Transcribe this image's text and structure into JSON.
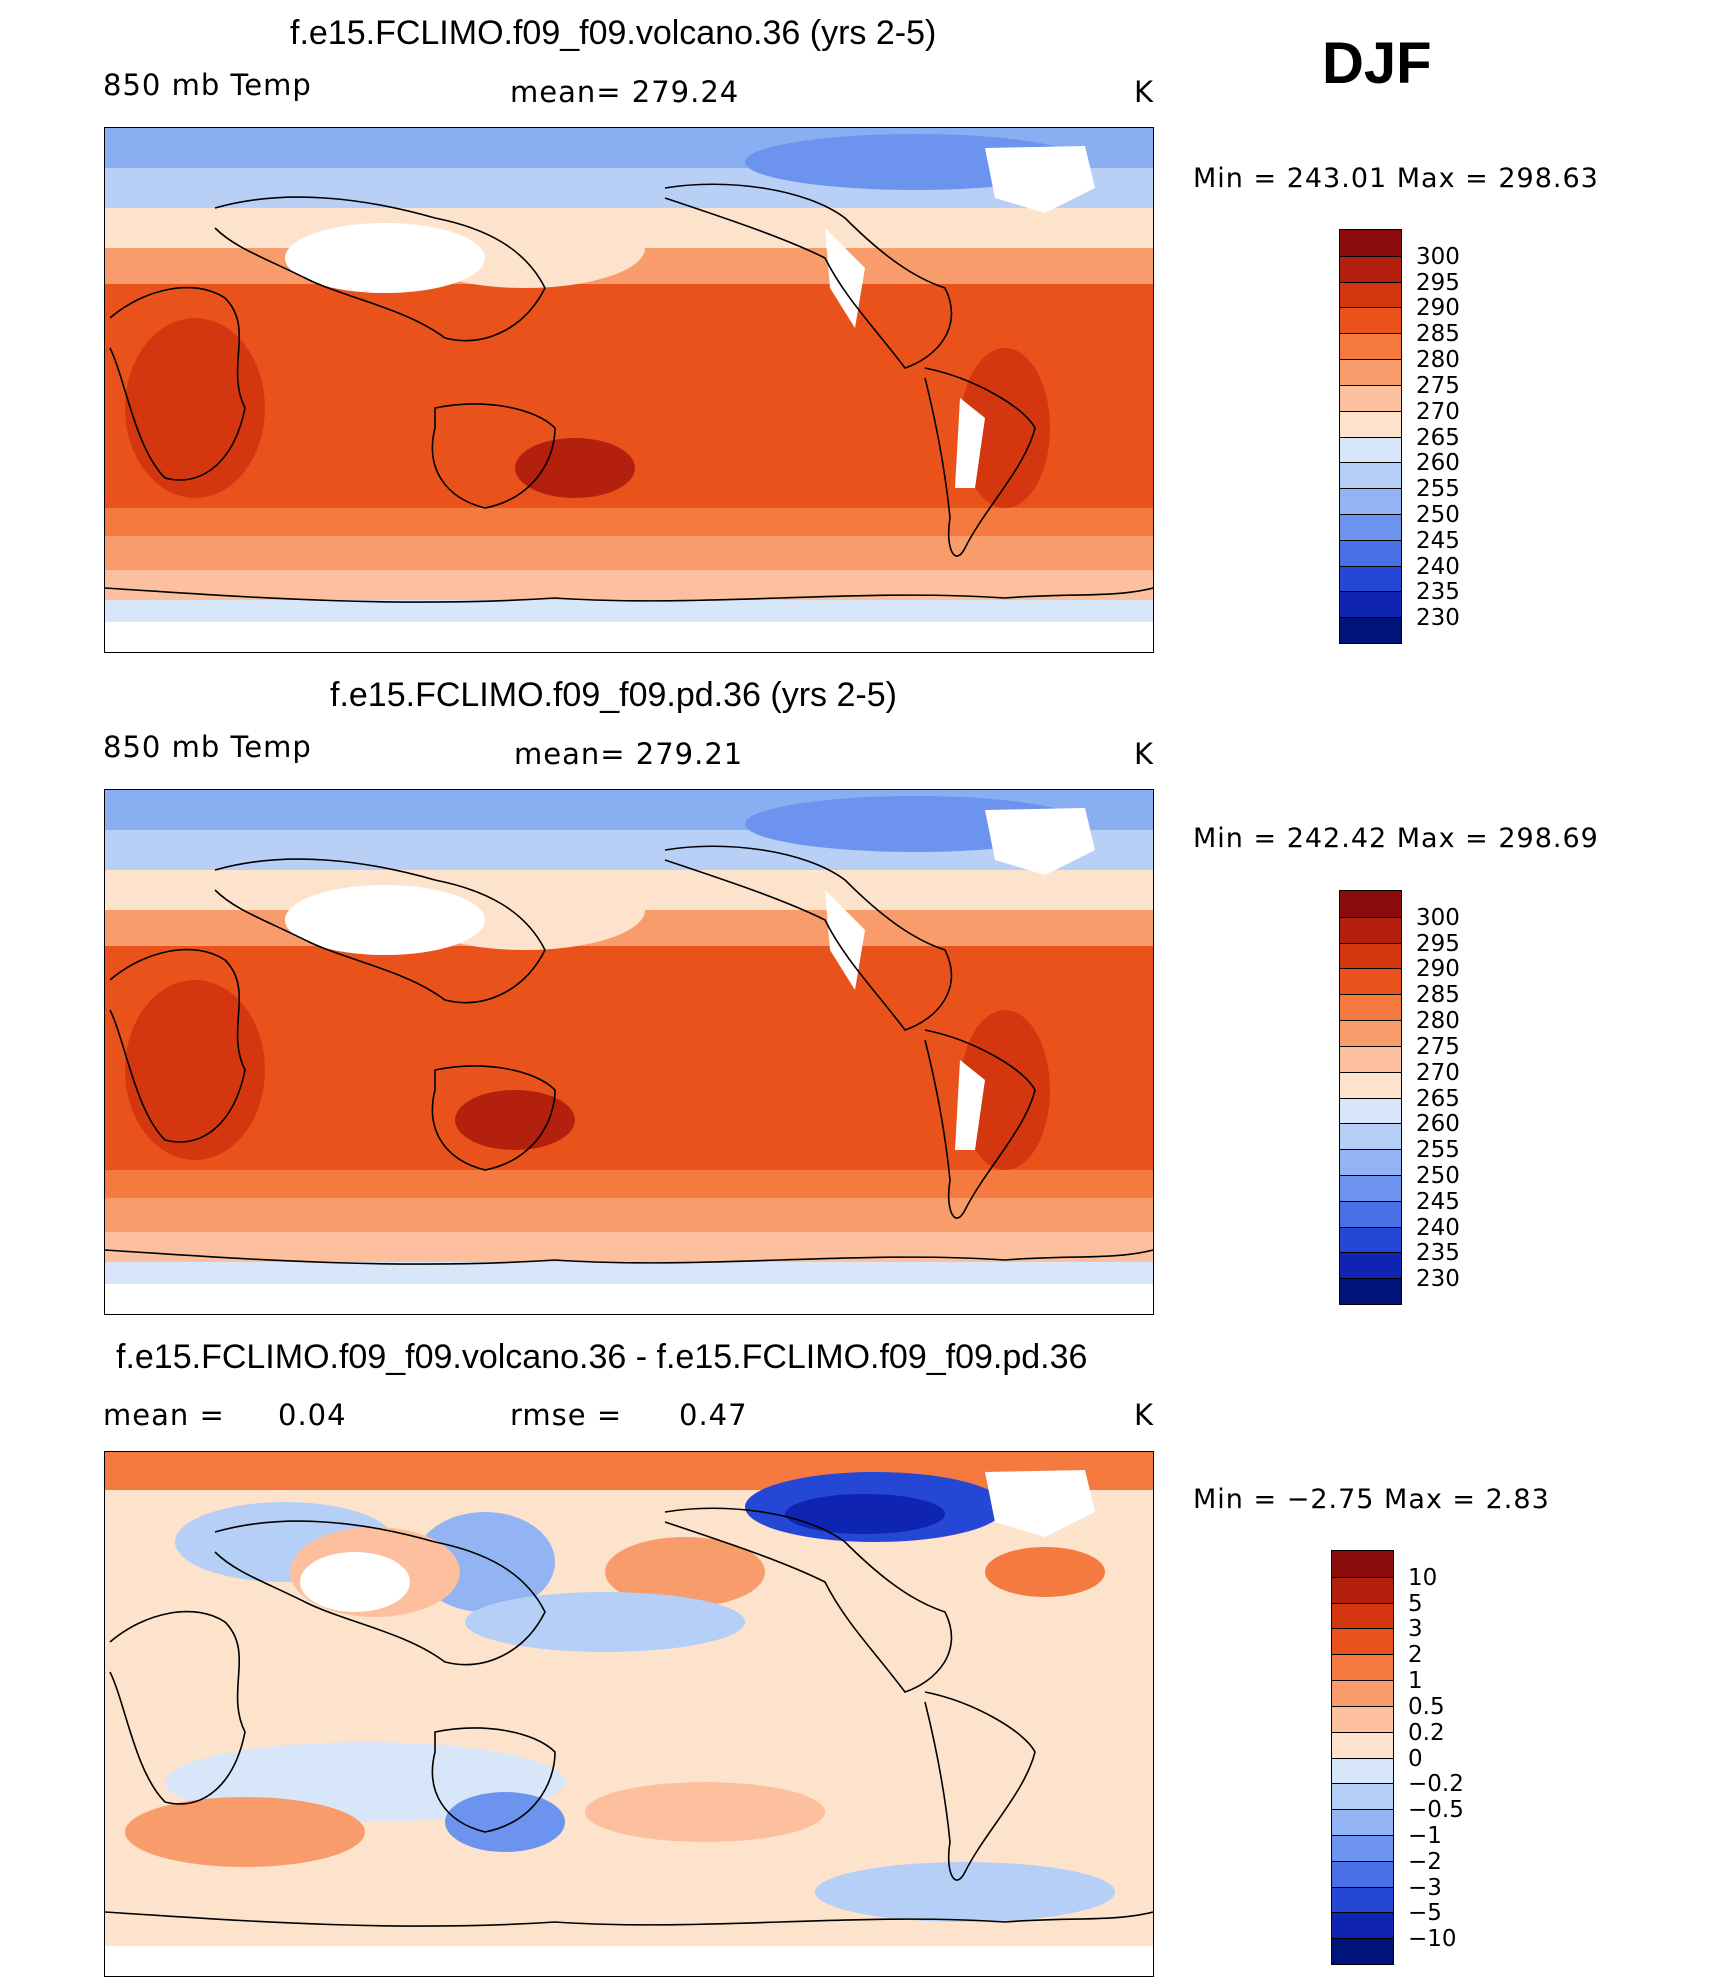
{
  "season": "DJF",
  "panels": [
    {
      "title": "f.e15.FCLIMO.f09_f09.volcano.36 (yrs 2-5)",
      "left_label": "850 mb Temp",
      "center_label": "mean= 279.24",
      "units": "K",
      "min_max": "Min = 243.01 Max = 298.63",
      "map_kind": "absolute"
    },
    {
      "title": "f.e15.FCLIMO.f09_f09.pd.36 (yrs 2-5)",
      "left_label": "850 mb Temp",
      "center_label": "mean= 279.21",
      "units": "K",
      "min_max": "Min = 242.42 Max = 298.69",
      "map_kind": "absolute"
    },
    {
      "title": "f.e15.FCLIMO.f09_f09.volcano.36 - f.e15.FCLIMO.f09_f09.pd.36",
      "left_label": "mean =",
      "left_value": "0.04",
      "center_label": "rmse =",
      "center_value": "0.47",
      "units": "K",
      "min_max": "Min = −2.75 Max = 2.83",
      "map_kind": "difference"
    }
  ],
  "colorbars": {
    "absolute": {
      "labels": [
        "300",
        "295",
        "290",
        "285",
        "280",
        "275",
        "270",
        "265",
        "260",
        "255",
        "250",
        "245",
        "240",
        "235",
        "230"
      ],
      "colors": [
        "#8b0b0b",
        "#b3200e",
        "#d4370f",
        "#e9521a",
        "#f47a3f",
        "#f89c6c",
        "#fcc09e",
        "#fde3cc",
        "#d7e6f8",
        "#b5cff6",
        "#92b4f3",
        "#6c94ee",
        "#4a70e6",
        "#2447d6",
        "#0f24b0",
        "#00137a"
      ]
    },
    "difference": {
      "labels": [
        "10",
        "5",
        "3",
        "2",
        "1",
        "0.5",
        "0.2",
        "0",
        "−0.2",
        "−0.5",
        "−1",
        "−2",
        "−3",
        "−5",
        "−10"
      ],
      "colors": [
        "#8b0b0b",
        "#b3200e",
        "#d4370f",
        "#e9521a",
        "#f47a3f",
        "#f89c6c",
        "#fcc09e",
        "#fde3cc",
        "#d7e6f8",
        "#b5cff6",
        "#92b4f3",
        "#6c94ee",
        "#4a70e6",
        "#2447d6",
        "#0f24b0",
        "#00137a"
      ]
    }
  }
}
